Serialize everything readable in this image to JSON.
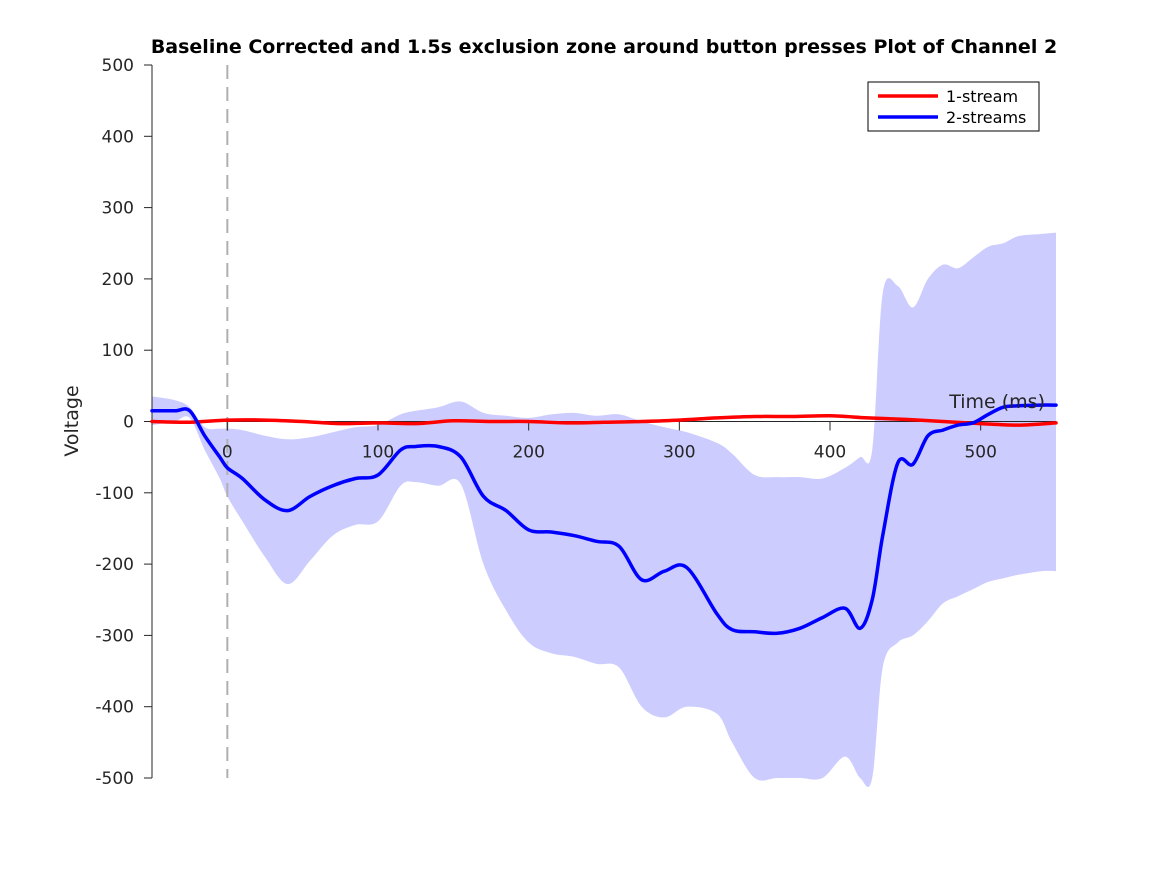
{
  "chart_data": {
    "type": "line",
    "title": "Baseline Corrected and 1.5s exclusion zone around button presses Plot of Channel 2",
    "xlabel": "Time (ms)",
    "ylabel": "Voltage",
    "xlim": [
      -50,
      550
    ],
    "ylim": [
      -500,
      500
    ],
    "xticks": [
      0,
      100,
      200,
      300,
      400,
      500
    ],
    "yticks": [
      500,
      400,
      300,
      200,
      100,
      0,
      -100,
      -200,
      -300,
      -400,
      -500
    ],
    "event_line_x": 0,
    "legend_position": "top-right",
    "colors": {
      "stream1": "#ff0000",
      "stream2": "#0000ff",
      "band": "#ccccff",
      "event_line": "#b0b0b0"
    },
    "series": [
      {
        "name": "1-stream",
        "color": "#ff0000",
        "x": [
          -50,
          -25,
          0,
          25,
          50,
          75,
          100,
          125,
          150,
          175,
          200,
          225,
          250,
          275,
          300,
          325,
          350,
          375,
          400,
          425,
          450,
          475,
          500,
          525,
          550
        ],
        "y": [
          0,
          -1,
          2,
          2,
          0,
          -3,
          -2,
          -3,
          1,
          0,
          0,
          -2,
          -1,
          0,
          2,
          5,
          7,
          7,
          8,
          5,
          3,
          0,
          -3,
          -5,
          -2
        ]
      },
      {
        "name": "2-streams",
        "color": "#0000ff",
        "x": [
          -50,
          -35,
          -25,
          -15,
          -5,
          0,
          10,
          25,
          40,
          55,
          70,
          85,
          100,
          115,
          125,
          140,
          155,
          170,
          185,
          200,
          215,
          230,
          245,
          260,
          275,
          290,
          305,
          325,
          335,
          350,
          365,
          380,
          395,
          410,
          420,
          428,
          435,
          445,
          455,
          465,
          475,
          485,
          495,
          505,
          515,
          525,
          540,
          550
        ],
        "y": [
          15,
          15,
          15,
          -20,
          -50,
          -65,
          -80,
          -110,
          -125,
          -105,
          -90,
          -80,
          -75,
          -40,
          -35,
          -35,
          -50,
          -105,
          -125,
          -152,
          -155,
          -160,
          -168,
          -175,
          -222,
          -210,
          -205,
          -270,
          -292,
          -295,
          -297,
          -290,
          -275,
          -262,
          -290,
          -250,
          -160,
          -58,
          -60,
          -20,
          -12,
          -5,
          -2,
          10,
          20,
          22,
          23,
          23
        ]
      }
    ],
    "band": {
      "series": "2-streams",
      "x": [
        -50,
        -35,
        -25,
        -15,
        -5,
        0,
        10,
        25,
        40,
        55,
        70,
        85,
        100,
        115,
        125,
        140,
        155,
        170,
        185,
        200,
        215,
        230,
        245,
        260,
        275,
        290,
        305,
        325,
        335,
        350,
        365,
        380,
        395,
        410,
        420,
        428,
        435,
        445,
        455,
        465,
        475,
        485,
        495,
        505,
        515,
        525,
        540,
        550
      ],
      "upper": [
        35,
        30,
        20,
        -8,
        -10,
        -10,
        -12,
        -20,
        -25,
        -22,
        -15,
        -8,
        -5,
        10,
        15,
        20,
        28,
        12,
        8,
        5,
        10,
        12,
        8,
        10,
        0,
        -8,
        -15,
        -30,
        -45,
        -75,
        -78,
        -78,
        -80,
        -65,
        -50,
        -40,
        180,
        190,
        160,
        200,
        220,
        215,
        230,
        245,
        250,
        260,
        263,
        265
      ],
      "lower": [
        -5,
        0,
        5,
        -40,
        -80,
        -105,
        -140,
        -190,
        -228,
        -195,
        -160,
        -145,
        -140,
        -90,
        -85,
        -90,
        -88,
        -200,
        -265,
        -310,
        -325,
        -330,
        -340,
        -345,
        -400,
        -415,
        -400,
        -410,
        -450,
        -500,
        -500,
        -500,
        -500,
        -470,
        -500,
        -500,
        -345,
        -310,
        -300,
        -280,
        -255,
        -245,
        -235,
        -225,
        -220,
        -215,
        -210,
        -210
      ]
    }
  }
}
